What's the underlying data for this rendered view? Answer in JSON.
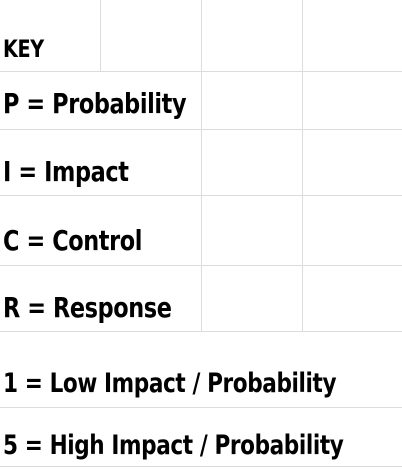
{
  "key": {
    "heading": "KEY",
    "probability": "P = Probability",
    "impact": "I = Impact",
    "control": "C = Control",
    "response": "R = Response",
    "low": "1 = Low Impact / Probability",
    "high": "5 = High Impact / Probability"
  }
}
